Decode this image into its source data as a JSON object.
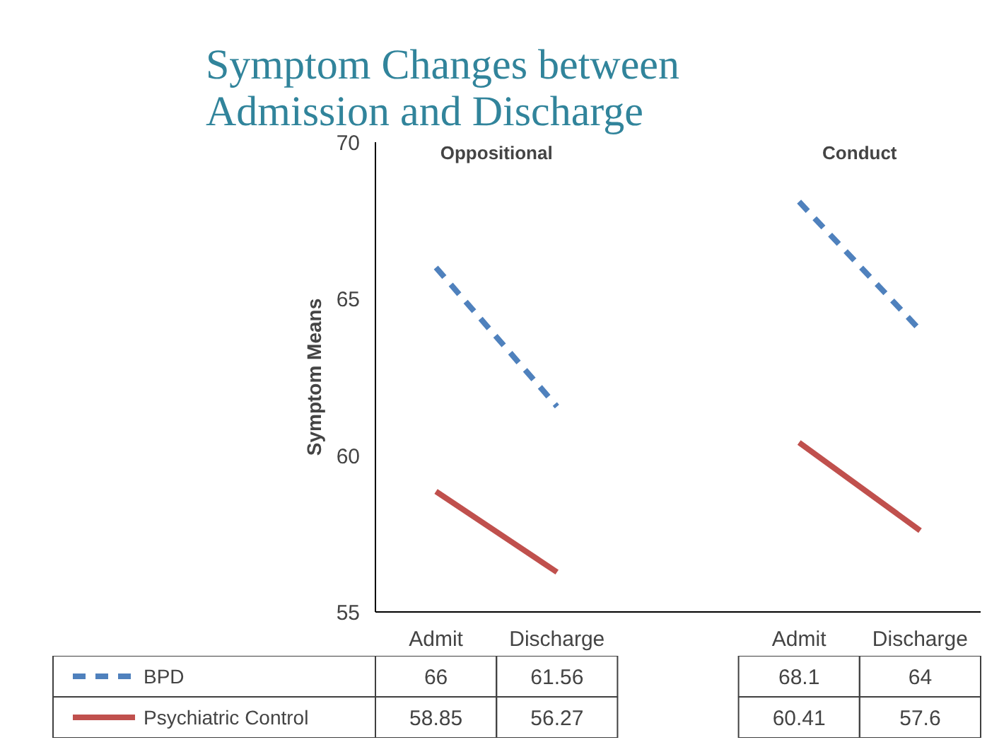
{
  "chart_data": {
    "type": "line",
    "title": "Symptom Changes between\nAdmission and Discharge",
    "ylabel": "Symptom Means",
    "categories": [
      "Admit",
      "Discharge",
      null,
      "Admit",
      "Discharge"
    ],
    "series": [
      {
        "name": "BPD",
        "color": "#4f81bd",
        "line_style": "dashed",
        "values": [
          66,
          61.56,
          null,
          68.1,
          64
        ]
      },
      {
        "name": "Psychiatric Control",
        "color": "#c0504d",
        "line_style": "solid",
        "values": [
          58.85,
          56.27,
          null,
          60.41,
          57.6
        ]
      }
    ],
    "annotations": [
      "Oppositional",
      "Conduct"
    ],
    "ylim": [
      55,
      70
    ],
    "yticks": [
      55,
      60,
      65,
      70
    ],
    "data_labels": true,
    "legend": "bottom",
    "marker": "none"
  }
}
